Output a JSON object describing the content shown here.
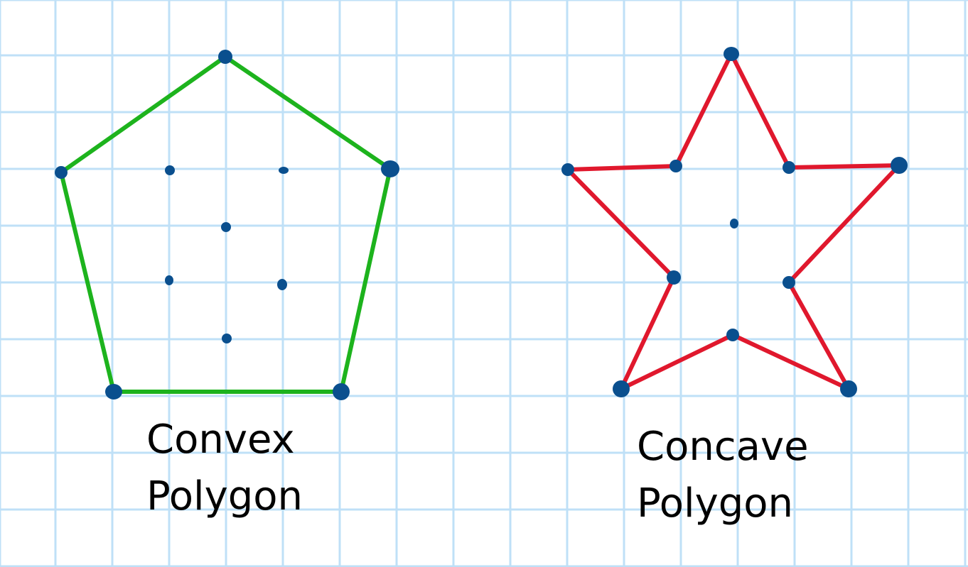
{
  "colors": {
    "grid": "#bfe0f7",
    "convex_outline": "#1db31d",
    "concave_outline": "#e0182d",
    "points": "#0a4f8e",
    "text": "#000000"
  },
  "figures": [
    {
      "id": "convex",
      "shape": "pentagon",
      "label_line1": "Convex",
      "label_line2": "Polygon"
    },
    {
      "id": "concave",
      "shape": "star",
      "label_line1": "Concave",
      "label_line2": "Polygon"
    }
  ]
}
